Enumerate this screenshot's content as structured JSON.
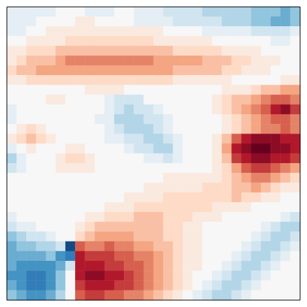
{
  "chart_data": {
    "type": "heatmap",
    "tick_labels": false,
    "zlim": [
      -1,
      1
    ],
    "values": [
      [
        -0.1,
        -0.1,
        -0.1,
        -0.1,
        -0.1,
        0,
        0,
        0,
        -0.1,
        -0.1,
        -0.1,
        0,
        0,
        -0.1,
        -0.1,
        -0.1,
        -0.2,
        -0.2,
        -0.2,
        -0.2,
        -0.3,
        -0.3,
        -0.3,
        -0.3,
        -0.3,
        -0.4,
        -0.4,
        -0.4,
        -0.5,
        -0.4
      ],
      [
        -0.1,
        -0.1,
        -0.1,
        0,
        0,
        0,
        0,
        0.1,
        0.1,
        0,
        0,
        0,
        0,
        -0.1,
        -0.1,
        -0.1,
        -0.1,
        -0.2,
        -0.2,
        -0.2,
        -0.2,
        -0.2,
        -0.3,
        -0.3,
        -0.3,
        -0.4,
        -0.4,
        -0.5,
        -0.5,
        -0.4
      ],
      [
        -0.1,
        -0.1,
        0,
        0,
        0.1,
        0.1,
        0.1,
        0.1,
        0.1,
        0.1,
        0.1,
        0.1,
        0.1,
        0.1,
        0.1,
        0.1,
        0,
        0,
        0,
        0,
        -0.1,
        -0.1,
        -0.1,
        -0.1,
        -0.1,
        -0.2,
        -0.2,
        -0.2,
        -0.2,
        -0.1
      ],
      [
        0,
        0,
        0.1,
        0.1,
        0.1,
        0.1,
        0.2,
        0.2,
        0.2,
        0.2,
        0.2,
        0.2,
        0.2,
        0.2,
        0.2,
        0.1,
        0.1,
        0.1,
        0.1,
        0.1,
        0.1,
        0,
        0,
        0,
        0,
        0,
        0,
        -0.1,
        -0.1,
        0
      ],
      [
        0.1,
        0.1,
        0.2,
        0.2,
        0.2,
        0.3,
        0.3,
        0.3,
        0.3,
        0.3,
        0.3,
        0.3,
        0.3,
        0.3,
        0.3,
        0.3,
        0.3,
        0.2,
        0.2,
        0.2,
        0.2,
        0.2,
        0.1,
        0.1,
        0.1,
        0.1,
        0,
        0,
        0,
        0
      ],
      [
        0.1,
        0.2,
        0.3,
        0.3,
        0.3,
        0.4,
        0.5,
        0.5,
        0.5,
        0.5,
        0.5,
        0.5,
        0.5,
        0.5,
        0.5,
        0.4,
        0.4,
        0.4,
        0.4,
        0.4,
        0.3,
        0.3,
        0.3,
        0.2,
        0.2,
        0.1,
        0.1,
        0.1,
        0,
        0
      ],
      [
        0.2,
        0.3,
        0.3,
        0.4,
        0.4,
        0.4,
        0.4,
        0.4,
        0.4,
        0.4,
        0.4,
        0.4,
        0.4,
        0.4,
        0.4,
        0.4,
        0.4,
        0.3,
        0.3,
        0.3,
        0.3,
        0.3,
        0.2,
        0.2,
        0.1,
        0.1,
        0.1,
        0,
        0,
        0
      ],
      [
        0.1,
        0.1,
        0.2,
        0.2,
        0.2,
        0.2,
        0.2,
        0.2,
        0.2,
        0.2,
        0.2,
        0.2,
        0.2,
        0.2,
        0.2,
        0.2,
        0.2,
        0.1,
        0.1,
        0.1,
        0.1,
        0.1,
        0.1,
        0,
        0,
        0,
        0,
        0,
        0.1,
        0.1
      ],
      [
        0,
        0,
        0,
        0,
        0,
        0,
        0,
        0,
        0.1,
        0.1,
        0.1,
        0.1,
        0,
        0,
        0,
        0,
        0,
        0,
        0,
        0,
        0,
        0,
        0.1,
        0.1,
        0.1,
        0.2,
        0.3,
        0.3,
        0.4,
        0.4
      ],
      [
        0,
        0,
        0,
        0,
        0.1,
        0.1,
        0,
        0,
        0,
        0,
        -0.1,
        -0.2,
        -0.2,
        -0.2,
        0,
        0,
        0,
        0,
        0,
        0,
        0,
        0.1,
        0.2,
        0.3,
        0.3,
        0.4,
        0.5,
        0.6,
        0.6,
        0.5
      ],
      [
        -0.1,
        0,
        0,
        0,
        0,
        0,
        0,
        0,
        0,
        0,
        -0.1,
        -0.2,
        -0.3,
        -0.2,
        -0.2,
        -0.1,
        0,
        0,
        0,
        0,
        0,
        0.1,
        0.2,
        0.3,
        0.4,
        0.5,
        0.6,
        0.8,
        0.9,
        0.7
      ],
      [
        -0.1,
        0,
        0,
        0,
        0,
        0,
        0,
        0,
        0,
        -0.1,
        -0.1,
        -0.3,
        -0.3,
        -0.3,
        -0.2,
        -0.2,
        -0.1,
        0,
        0,
        0,
        0,
        0,
        0.1,
        0.2,
        0.3,
        0.4,
        0.5,
        0.6,
        0.6,
        0.5
      ],
      [
        0,
        0.1,
        0.2,
        0.1,
        0,
        0,
        0,
        0,
        0,
        0,
        -0.1,
        -0.2,
        -0.3,
        -0.3,
        -0.3,
        -0.2,
        -0.1,
        0,
        0,
        0,
        0,
        0,
        0.1,
        0.2,
        0.3,
        0.4,
        0.5,
        0.5,
        0.6,
        0.5
      ],
      [
        0.1,
        0.2,
        0.3,
        0.2,
        0.1,
        0,
        0,
        0,
        0,
        0,
        -0.1,
        -0.1,
        -0.2,
        -0.2,
        -0.3,
        -0.3,
        -0.2,
        -0.1,
        0,
        0,
        0,
        0.1,
        0.3,
        0.6,
        0.8,
        0.9,
        0.9,
        0.9,
        0.8,
        0.8
      ],
      [
        -0.1,
        0,
        0.1,
        0,
        0,
        0,
        0.1,
        0.1,
        0,
        0,
        0,
        0,
        -0.1,
        -0.2,
        -0.2,
        -0.3,
        -0.3,
        -0.1,
        0,
        0,
        0,
        0.1,
        0.4,
        0.8,
        0.9,
        1.0,
        1.0,
        0.9,
        0.9,
        0.8
      ],
      [
        -0.3,
        -0.1,
        0,
        0,
        0,
        0.1,
        0.2,
        0.2,
        0.1,
        0,
        0,
        0,
        0,
        0,
        -0.1,
        -0.1,
        -0.2,
        -0.1,
        0,
        0,
        0,
        0.1,
        0.3,
        0.7,
        0.8,
        0.9,
        0.9,
        0.8,
        0.8,
        0.7
      ],
      [
        -0.2,
        -0.1,
        0,
        0,
        0,
        0.1,
        0.1,
        0.1,
        0.1,
        0,
        0,
        0,
        0,
        0,
        0,
        0,
        0,
        0,
        0,
        0,
        0,
        0.1,
        0.2,
        0.4,
        0.6,
        0.7,
        0.7,
        0.6,
        0.5,
        0.4
      ],
      [
        0,
        0,
        0,
        0,
        0,
        0,
        0,
        0,
        0,
        0,
        0,
        0,
        0,
        0,
        0,
        0,
        0.1,
        0.1,
        0.1,
        0.1,
        0.1,
        0.1,
        0.2,
        0.3,
        0.4,
        0.5,
        0.5,
        0.4,
        0.3,
        0.2
      ],
      [
        0,
        0,
        0,
        0,
        0,
        0,
        0,
        0,
        0,
        0,
        0,
        0,
        0,
        0,
        0.1,
        0.1,
        0.1,
        0.1,
        0.1,
        0.1,
        0.2,
        0.2,
        0.2,
        0.3,
        0.3,
        0.4,
        0.3,
        0.2,
        0.1,
        0.1
      ],
      [
        0,
        0,
        0,
        0,
        0,
        0,
        0,
        0,
        0,
        0,
        0,
        0,
        0.1,
        0.1,
        0.1,
        0.1,
        0.2,
        0.2,
        0.2,
        0.2,
        0.2,
        0.2,
        0.2,
        0.3,
        0.2,
        0.2,
        0.1,
        0.1,
        0,
        0
      ],
      [
        0,
        0,
        0,
        0,
        0,
        0,
        0,
        0,
        0,
        0,
        0.1,
        0.1,
        0.1,
        0.2,
        0.2,
        0.2,
        0.2,
        0.2,
        0.2,
        0.2,
        0.2,
        0.1,
        0.1,
        0.1,
        0.1,
        0,
        0,
        0,
        0,
        0
      ],
      [
        -0.1,
        0,
        0,
        0,
        0,
        0,
        0,
        0,
        0.1,
        0.1,
        0.2,
        0.2,
        0.2,
        0.3,
        0.3,
        0.3,
        0.2,
        0.2,
        0.2,
        0.1,
        0.1,
        0.1,
        0,
        0,
        0,
        0,
        0,
        0,
        -0.1,
        -0.2
      ],
      [
        -0.2,
        -0.1,
        -0.1,
        0,
        0,
        0,
        0,
        0.1,
        0.2,
        0.3,
        0.3,
        0.3,
        0.3,
        0.3,
        0.3,
        0.3,
        0.2,
        0.2,
        0.1,
        0.1,
        0,
        0,
        0,
        0,
        0,
        0,
        -0.1,
        -0.2,
        -0.3,
        -0.3
      ],
      [
        -0.4,
        -0.3,
        -0.2,
        -0.2,
        -0.1,
        0,
        0,
        0.2,
        0.3,
        0.4,
        0.4,
        0.4,
        0.4,
        0.3,
        0.3,
        0.3,
        0.2,
        0.2,
        0.1,
        0.1,
        0,
        0,
        0,
        0,
        0,
        -0.1,
        -0.2,
        -0.3,
        -0.3,
        -0.2
      ],
      [
        -0.5,
        -0.4,
        -0.4,
        -0.3,
        -0.3,
        -0.2,
        -0.9,
        0.6,
        0.5,
        0.5,
        0.6,
        0.5,
        0.5,
        0.4,
        0.4,
        0.3,
        0.3,
        0.2,
        0.1,
        0.1,
        0,
        0,
        0,
        0,
        -0.1,
        -0.2,
        -0.3,
        -0.3,
        -0.2,
        -0.1
      ],
      [
        -0.5,
        -0.5,
        -0.5,
        -0.5,
        -0.4,
        -0.6,
        -0.7,
        0.8,
        0.7,
        0.7,
        0.7,
        0.6,
        0.6,
        0.5,
        0.5,
        0.4,
        0.3,
        0.2,
        0.1,
        0.1,
        0,
        0,
        0,
        -0.1,
        -0.2,
        -0.3,
        -0.3,
        -0.2,
        -0.1,
        0
      ],
      [
        -0.5,
        -0.6,
        -0.6,
        -0.6,
        -0.6,
        -0.5,
        -0.2,
        0.8,
        0.8,
        0.8,
        0.7,
        0.7,
        0.6,
        0.6,
        0.5,
        0.4,
        0.3,
        0.2,
        0.1,
        0.1,
        0,
        0,
        -0.1,
        -0.2,
        -0.3,
        -0.3,
        -0.2,
        -0.1,
        0,
        0
      ],
      [
        -0.6,
        -0.6,
        -0.7,
        -0.7,
        -0.6,
        -0.4,
        0,
        0.8,
        0.9,
        0.9,
        0.8,
        0.8,
        0.7,
        0.6,
        0.5,
        0.4,
        0.3,
        0.2,
        0.1,
        0,
        0,
        -0.1,
        -0.2,
        -0.3,
        -0.3,
        -0.2,
        -0.1,
        0,
        0,
        0
      ],
      [
        -0.5,
        -0.6,
        -0.7,
        -0.7,
        -0.6,
        -0.4,
        0,
        0.7,
        0.8,
        0.8,
        0.8,
        0.7,
        0.7,
        0.6,
        0.5,
        0.4,
        0.3,
        0.2,
        0.1,
        0,
        -0.1,
        -0.2,
        -0.3,
        -0.3,
        -0.2,
        -0.1,
        0,
        0,
        0,
        0
      ],
      [
        -0.4,
        -0.5,
        -0.6,
        -0.6,
        -0.5,
        -0.3,
        0,
        0.6,
        0.7,
        0.7,
        0.6,
        0.6,
        0.5,
        0.5,
        0.4,
        0.3,
        0.2,
        0.1,
        0,
        -0.1,
        -0.2,
        -0.3,
        -0.3,
        -0.2,
        -0.1,
        0,
        0,
        0,
        0,
        0
      ]
    ]
  }
}
